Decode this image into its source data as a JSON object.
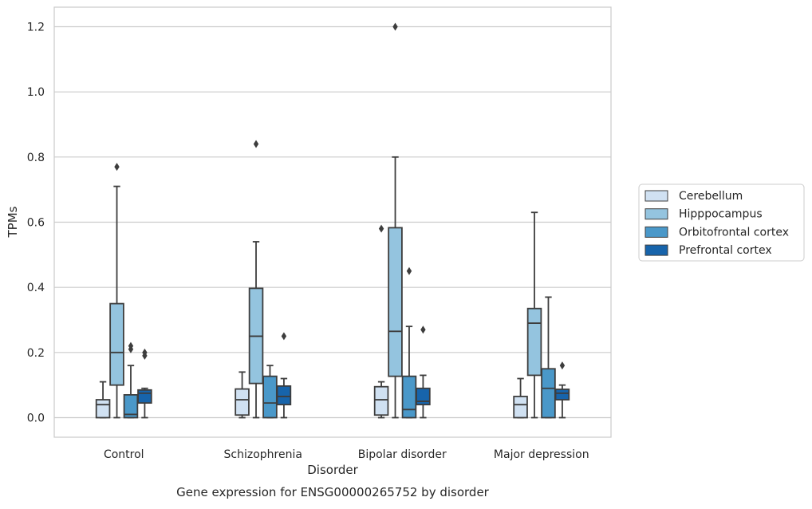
{
  "chart_data": {
    "type": "box",
    "xlabel": "Disorder",
    "ylabel": "TPMs",
    "caption": "Gene expression for ENSG00000265752 by disorder",
    "categories": [
      "Control",
      "Schizophrenia",
      "Bipolar disorder",
      "Major depression"
    ],
    "ylim": [
      -0.06,
      1.26
    ],
    "yticks": [
      0.0,
      0.2,
      0.4,
      0.6,
      0.8,
      1.0,
      1.2
    ],
    "ytick_labels": [
      "0.0",
      "0.2",
      "0.4",
      "0.6",
      "0.8",
      "1.0",
      "1.2"
    ],
    "grid": "horizontal",
    "legend_placement": "right",
    "series": [
      {
        "name": "Cerebellum",
        "color": "#d0e1f2",
        "boxes": [
          {
            "whislo": 0.0,
            "q1": 0.0,
            "med": 0.04,
            "q3": 0.055,
            "whishi": 0.11,
            "fliers": []
          },
          {
            "whislo": 0.0,
            "q1": 0.008,
            "med": 0.055,
            "q3": 0.088,
            "whishi": 0.14,
            "fliers": []
          },
          {
            "whislo": 0.0,
            "q1": 0.008,
            "med": 0.055,
            "q3": 0.095,
            "whishi": 0.11,
            "fliers": [
              0.58
            ]
          },
          {
            "whislo": 0.0,
            "q1": 0.0,
            "med": 0.04,
            "q3": 0.065,
            "whishi": 0.12,
            "fliers": []
          }
        ]
      },
      {
        "name": "Hipppocampus",
        "color": "#94c4df",
        "boxes": [
          {
            "whislo": 0.0,
            "q1": 0.1,
            "med": 0.2,
            "q3": 0.35,
            "whishi": 0.71,
            "fliers": [
              0.77
            ]
          },
          {
            "whislo": 0.0,
            "q1": 0.105,
            "med": 0.25,
            "q3": 0.397,
            "whishi": 0.54,
            "fliers": [
              0.84
            ]
          },
          {
            "whislo": 0.0,
            "q1": 0.127,
            "med": 0.265,
            "q3": 0.583,
            "whishi": 0.8,
            "fliers": [
              1.2
            ]
          },
          {
            "whislo": 0.0,
            "q1": 0.13,
            "med": 0.29,
            "q3": 0.335,
            "whishi": 0.63,
            "fliers": []
          }
        ]
      },
      {
        "name": "Orbitofrontal cortex",
        "color": "#4a98c9",
        "boxes": [
          {
            "whislo": 0.0,
            "q1": 0.0,
            "med": 0.01,
            "q3": 0.07,
            "whishi": 0.16,
            "fliers": [
              0.21,
              0.22
            ]
          },
          {
            "whislo": 0.0,
            "q1": 0.0,
            "med": 0.045,
            "q3": 0.127,
            "whishi": 0.16,
            "fliers": []
          },
          {
            "whislo": 0.0,
            "q1": 0.0,
            "med": 0.025,
            "q3": 0.127,
            "whishi": 0.28,
            "fliers": [
              0.45
            ]
          },
          {
            "whislo": 0.0,
            "q1": 0.0,
            "med": 0.09,
            "q3": 0.15,
            "whishi": 0.37,
            "fliers": []
          }
        ]
      },
      {
        "name": "Prefrontal cortex",
        "color": "#1764ab",
        "boxes": [
          {
            "whislo": 0.0,
            "q1": 0.045,
            "med": 0.075,
            "q3": 0.085,
            "whishi": 0.09,
            "fliers": [
              0.19,
              0.2
            ]
          },
          {
            "whislo": 0.0,
            "q1": 0.04,
            "med": 0.065,
            "q3": 0.097,
            "whishi": 0.12,
            "fliers": [
              0.25
            ]
          },
          {
            "whislo": 0.0,
            "q1": 0.04,
            "med": 0.05,
            "q3": 0.09,
            "whishi": 0.13,
            "fliers": [
              0.27
            ]
          },
          {
            "whislo": 0.0,
            "q1": 0.055,
            "med": 0.075,
            "q3": 0.087,
            "whishi": 0.1,
            "fliers": [
              0.16
            ]
          }
        ]
      }
    ]
  }
}
